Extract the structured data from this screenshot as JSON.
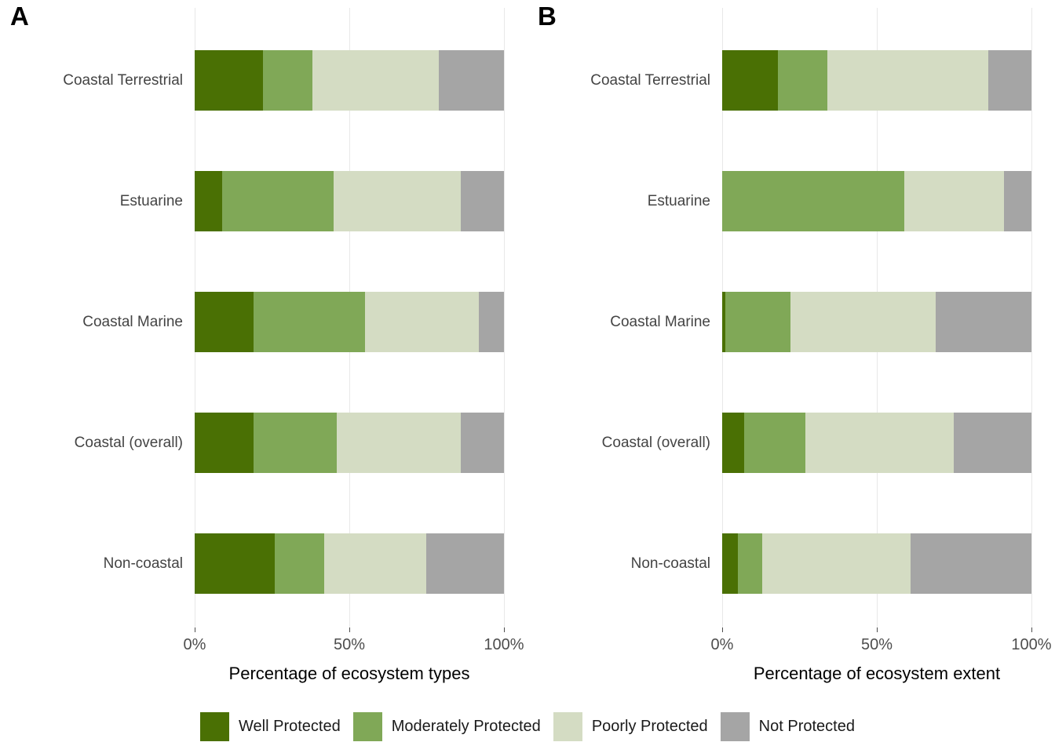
{
  "legend": {
    "items": [
      {
        "label": "Well Protected",
        "color": "#4a7004"
      },
      {
        "label": "Moderately Protected",
        "color": "#80a857"
      },
      {
        "label": "Poorly Protected",
        "color": "#d4dcc3"
      },
      {
        "label": "Not Protected",
        "color": "#a5a5a5"
      }
    ]
  },
  "chart_data": [
    {
      "type": "bar",
      "orientation": "horizontal",
      "stacked": true,
      "title": "A",
      "xlabel": "Percentage of ecosystem types",
      "ylabel": "",
      "xlim": [
        0,
        100
      ],
      "x_ticks": [
        0,
        50,
        100
      ],
      "x_tick_labels": [
        "0%",
        "50%",
        "100%"
      ],
      "grid": "vertical-only",
      "categories": [
        "Coastal Terrestrial",
        "Estuarine",
        "Coastal Marine",
        "Coastal (overall)",
        "Non-coastal"
      ],
      "series": [
        {
          "name": "Well Protected",
          "color": "#4a7004",
          "values": [
            22,
            9,
            19,
            19,
            26
          ]
        },
        {
          "name": "Moderately Protected",
          "color": "#80a857",
          "values": [
            16,
            36,
            36,
            27,
            16
          ]
        },
        {
          "name": "Poorly Protected",
          "color": "#d4dcc3",
          "values": [
            41,
            41,
            37,
            40,
            33
          ]
        },
        {
          "name": "Not Protected",
          "color": "#a5a5a5",
          "values": [
            21,
            14,
            8,
            14,
            25
          ]
        }
      ]
    },
    {
      "type": "bar",
      "orientation": "horizontal",
      "stacked": true,
      "title": "B",
      "xlabel": "Percentage of ecosystem extent",
      "ylabel": "",
      "xlim": [
        0,
        100
      ],
      "x_ticks": [
        0,
        50,
        100
      ],
      "x_tick_labels": [
        "0%",
        "50%",
        "100%"
      ],
      "grid": "vertical-only",
      "categories": [
        "Coastal Terrestrial",
        "Estuarine",
        "Coastal Marine",
        "Coastal (overall)",
        "Non-coastal"
      ],
      "series": [
        {
          "name": "Well Protected",
          "color": "#4a7004",
          "values": [
            18,
            0,
            1,
            7,
            5
          ]
        },
        {
          "name": "Moderately Protected",
          "color": "#80a857",
          "values": [
            16,
            59,
            21,
            20,
            8
          ]
        },
        {
          "name": "Poorly Protected",
          "color": "#d4dcc3",
          "values": [
            52,
            32,
            47,
            48,
            48
          ]
        },
        {
          "name": "Not Protected",
          "color": "#a5a5a5",
          "values": [
            14,
            9,
            31,
            25,
            39
          ]
        }
      ]
    }
  ]
}
